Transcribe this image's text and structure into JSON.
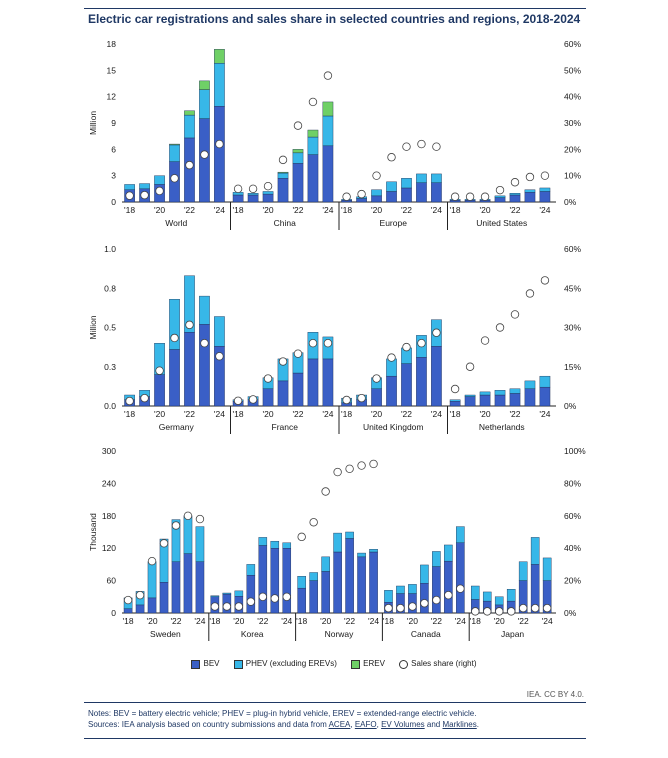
{
  "title": "Electric car registrations and sales share in selected countries and regions, 2018-2024",
  "colors": {
    "bev": "#3a5fc6",
    "phev": "#37b7e8",
    "erev": "#6fd066",
    "share_fill": "#ffffff",
    "share_stroke": "#444444",
    "axis": "#222222",
    "text": "#1a1a1a",
    "title": "#1f3864"
  },
  "legend": [
    {
      "key": "bev",
      "label": "BEV"
    },
    {
      "key": "phev",
      "label": "PHEV (excluding EREVs)"
    },
    {
      "key": "erev",
      "label": "EREV"
    },
    {
      "key": "share",
      "label": "Sales share (right)"
    }
  ],
  "credit": "IEA. CC BY 4.0.",
  "notes": {
    "line1": "Notes: BEV = battery electric vehicle; PHEV = plug-in hybrid vehicle, EREV = extended-range electric vehicle.",
    "line2_prefix": "Sources: IEA analysis based on country submissions and data from",
    "link1": "ACEA",
    "sep1": ",",
    "link2": "EAFO",
    "sep2": ",",
    "link3": "EV Volumes",
    "sep3": "and",
    "link4": "Marklines",
    "end": "."
  },
  "chart_data": [
    {
      "type": "bar",
      "stacked": true,
      "ylabel": "Million",
      "ylim": [
        0,
        18
      ],
      "yticks": [
        "0",
        "3",
        "6",
        "9",
        "12",
        "15",
        "18"
      ],
      "y2lim": [
        0,
        60
      ],
      "y2ticks": [
        "0%",
        "10%",
        "20%",
        "30%",
        "40%",
        "50%",
        "60%"
      ],
      "year_labels": [
        "'18",
        "'20",
        "'22",
        "'24"
      ],
      "years": [
        2018,
        2019,
        2020,
        2021,
        2022,
        2023,
        2024
      ],
      "groups": [
        {
          "name": "World",
          "bev": [
            1.4,
            1.5,
            2.0,
            4.6,
            7.3,
            9.5,
            10.9
          ],
          "phev": [
            0.6,
            0.6,
            1.0,
            1.9,
            2.6,
            3.3,
            4.9
          ],
          "erev": [
            0,
            0,
            0,
            0.1,
            0.5,
            1.0,
            1.6
          ],
          "share": [
            2.4,
            2.6,
            4.2,
            9.0,
            14.0,
            18.0,
            22.0
          ]
        },
        {
          "name": "China",
          "bev": [
            0.8,
            0.8,
            0.9,
            2.7,
            4.4,
            5.4,
            6.4
          ],
          "phev": [
            0.3,
            0.2,
            0.3,
            0.6,
            1.2,
            2.0,
            3.4
          ],
          "erev": [
            0,
            0,
            0,
            0.1,
            0.4,
            0.8,
            1.6
          ],
          "share": [
            5.0,
            5.0,
            6.0,
            16.0,
            29.0,
            38.0,
            48.0
          ]
        },
        {
          "name": "Europe",
          "bev": [
            0.2,
            0.4,
            0.7,
            1.2,
            1.6,
            2.2,
            2.2
          ],
          "phev": [
            0.1,
            0.2,
            0.7,
            1.1,
            1.1,
            1.0,
            1.0
          ],
          "erev": [
            0,
            0,
            0,
            0,
            0,
            0,
            0
          ],
          "share": [
            2.0,
            3.0,
            10.0,
            17.0,
            21.0,
            22.0,
            21.0
          ]
        },
        {
          "name": "United States",
          "bev": [
            0.2,
            0.2,
            0.2,
            0.5,
            0.8,
            1.1,
            1.2
          ],
          "phev": [
            0.1,
            0.1,
            0.1,
            0.2,
            0.2,
            0.3,
            0.4
          ],
          "erev": [
            0,
            0,
            0,
            0,
            0,
            0,
            0
          ],
          "share": [
            2.0,
            2.0,
            2.0,
            4.5,
            7.5,
            9.5,
            10.0
          ]
        }
      ]
    },
    {
      "type": "bar",
      "stacked": true,
      "ylabel": "Million",
      "ylim": [
        0,
        1.0
      ],
      "yticks": [
        "0.0",
        "0.3",
        "0.5",
        "0.8",
        "1.0"
      ],
      "y2lim": [
        0,
        60
      ],
      "y2ticks": [
        "0%",
        "15%",
        "30%",
        "45%",
        "60%"
      ],
      "year_labels": [
        "'18",
        "'20",
        "'22",
        "'24"
      ],
      "years": [
        2018,
        2019,
        2020,
        2021,
        2022,
        2023,
        2024
      ],
      "groups": [
        {
          "name": "Germany",
          "bev": [
            0.04,
            0.06,
            0.2,
            0.36,
            0.47,
            0.52,
            0.38
          ],
          "phev": [
            0.03,
            0.04,
            0.2,
            0.32,
            0.36,
            0.18,
            0.19
          ],
          "erev": [
            0,
            0,
            0,
            0,
            0,
            0,
            0
          ],
          "share": [
            1.9,
            3.0,
            13.5,
            26.0,
            31.0,
            24.0,
            19.0
          ]
        },
        {
          "name": "France",
          "bev": [
            0.03,
            0.04,
            0.11,
            0.16,
            0.21,
            0.3,
            0.3
          ],
          "phev": [
            0.01,
            0.02,
            0.07,
            0.14,
            0.13,
            0.17,
            0.14
          ],
          "erev": [
            0,
            0,
            0,
            0,
            0,
            0,
            0
          ],
          "share": [
            2.0,
            2.5,
            10.5,
            17.0,
            20.0,
            24.0,
            24.0
          ]
        },
        {
          "name": "United Kingdom",
          "bev": [
            0.02,
            0.04,
            0.11,
            0.19,
            0.27,
            0.31,
            0.38
          ],
          "phev": [
            0.03,
            0.03,
            0.07,
            0.11,
            0.1,
            0.14,
            0.17
          ],
          "erev": [
            0,
            0,
            0,
            0,
            0,
            0,
            0
          ],
          "share": [
            2.3,
            3.0,
            10.5,
            18.5,
            22.5,
            24.0,
            28.0
          ]
        },
        {
          "name": "Netherlands",
          "bev": [
            0.03,
            0.06,
            0.07,
            0.07,
            0.08,
            0.11,
            0.12
          ],
          "phev": [
            0.01,
            0.01,
            0.02,
            0.03,
            0.03,
            0.05,
            0.07
          ],
          "erev": [
            0,
            0,
            0,
            0,
            0,
            0,
            0
          ],
          "share": [
            6.5,
            15.0,
            25.0,
            30.0,
            35.0,
            43.0,
            48.0
          ]
        }
      ]
    },
    {
      "type": "bar",
      "stacked": true,
      "ylabel": "Thousand",
      "ylim": [
        0,
        300
      ],
      "yticks": [
        "0",
        "60",
        "120",
        "180",
        "240",
        "300"
      ],
      "y2lim": [
        0,
        100
      ],
      "y2ticks": [
        "0%",
        "20%",
        "40%",
        "60%",
        "80%",
        "100%"
      ],
      "year_labels": [
        "'18",
        "'20",
        "'22",
        "'24"
      ],
      "years": [
        2018,
        2019,
        2020,
        2021,
        2022,
        2023,
        2024
      ],
      "groups": [
        {
          "name": "Sweden",
          "bev": [
            8,
            15,
            28,
            57,
            95,
            110,
            95
          ],
          "phev": [
            20,
            25,
            67,
            80,
            78,
            70,
            65
          ],
          "erev": [
            0,
            0,
            0,
            0,
            0,
            0,
            0
          ],
          "share": [
            8,
            11,
            32,
            43,
            54,
            60,
            58
          ]
        },
        {
          "name": "Korea",
          "bev": [
            30,
            35,
            31,
            70,
            125,
            120,
            120
          ],
          "phev": [
            2,
            2,
            10,
            20,
            15,
            13,
            10
          ],
          "erev": [
            0,
            0,
            0,
            0,
            0,
            0,
            0
          ],
          "share": [
            4,
            4,
            4,
            7,
            10,
            9,
            10
          ]
        },
        {
          "name": "Norway",
          "bev": [
            46,
            60,
            77,
            113,
            138,
            104,
            113
          ],
          "phev": [
            22,
            15,
            27,
            35,
            12,
            7,
            5
          ],
          "erev": [
            0,
            0,
            0,
            0,
            0,
            0,
            0
          ],
          "share": [
            47,
            56,
            75,
            87,
            89,
            91,
            92
          ]
        },
        {
          "name": "Canada",
          "bev": [
            20,
            36,
            36,
            55,
            86,
            96,
            130
          ],
          "phev": [
            22,
            14,
            17,
            34,
            28,
            30,
            30
          ],
          "erev": [
            0,
            0,
            0,
            0,
            0,
            0,
            0
          ],
          "share": [
            3,
            3,
            4,
            6,
            8,
            11,
            15
          ]
        },
        {
          "name": "Japan",
          "bev": [
            25,
            22,
            15,
            22,
            60,
            90,
            60
          ],
          "phev": [
            25,
            17,
            15,
            22,
            35,
            50,
            42
          ],
          "erev": [
            0,
            0,
            0,
            0,
            0,
            0,
            0
          ],
          "share": [
            1,
            1,
            1,
            1,
            3,
            3,
            3
          ]
        }
      ]
    }
  ]
}
